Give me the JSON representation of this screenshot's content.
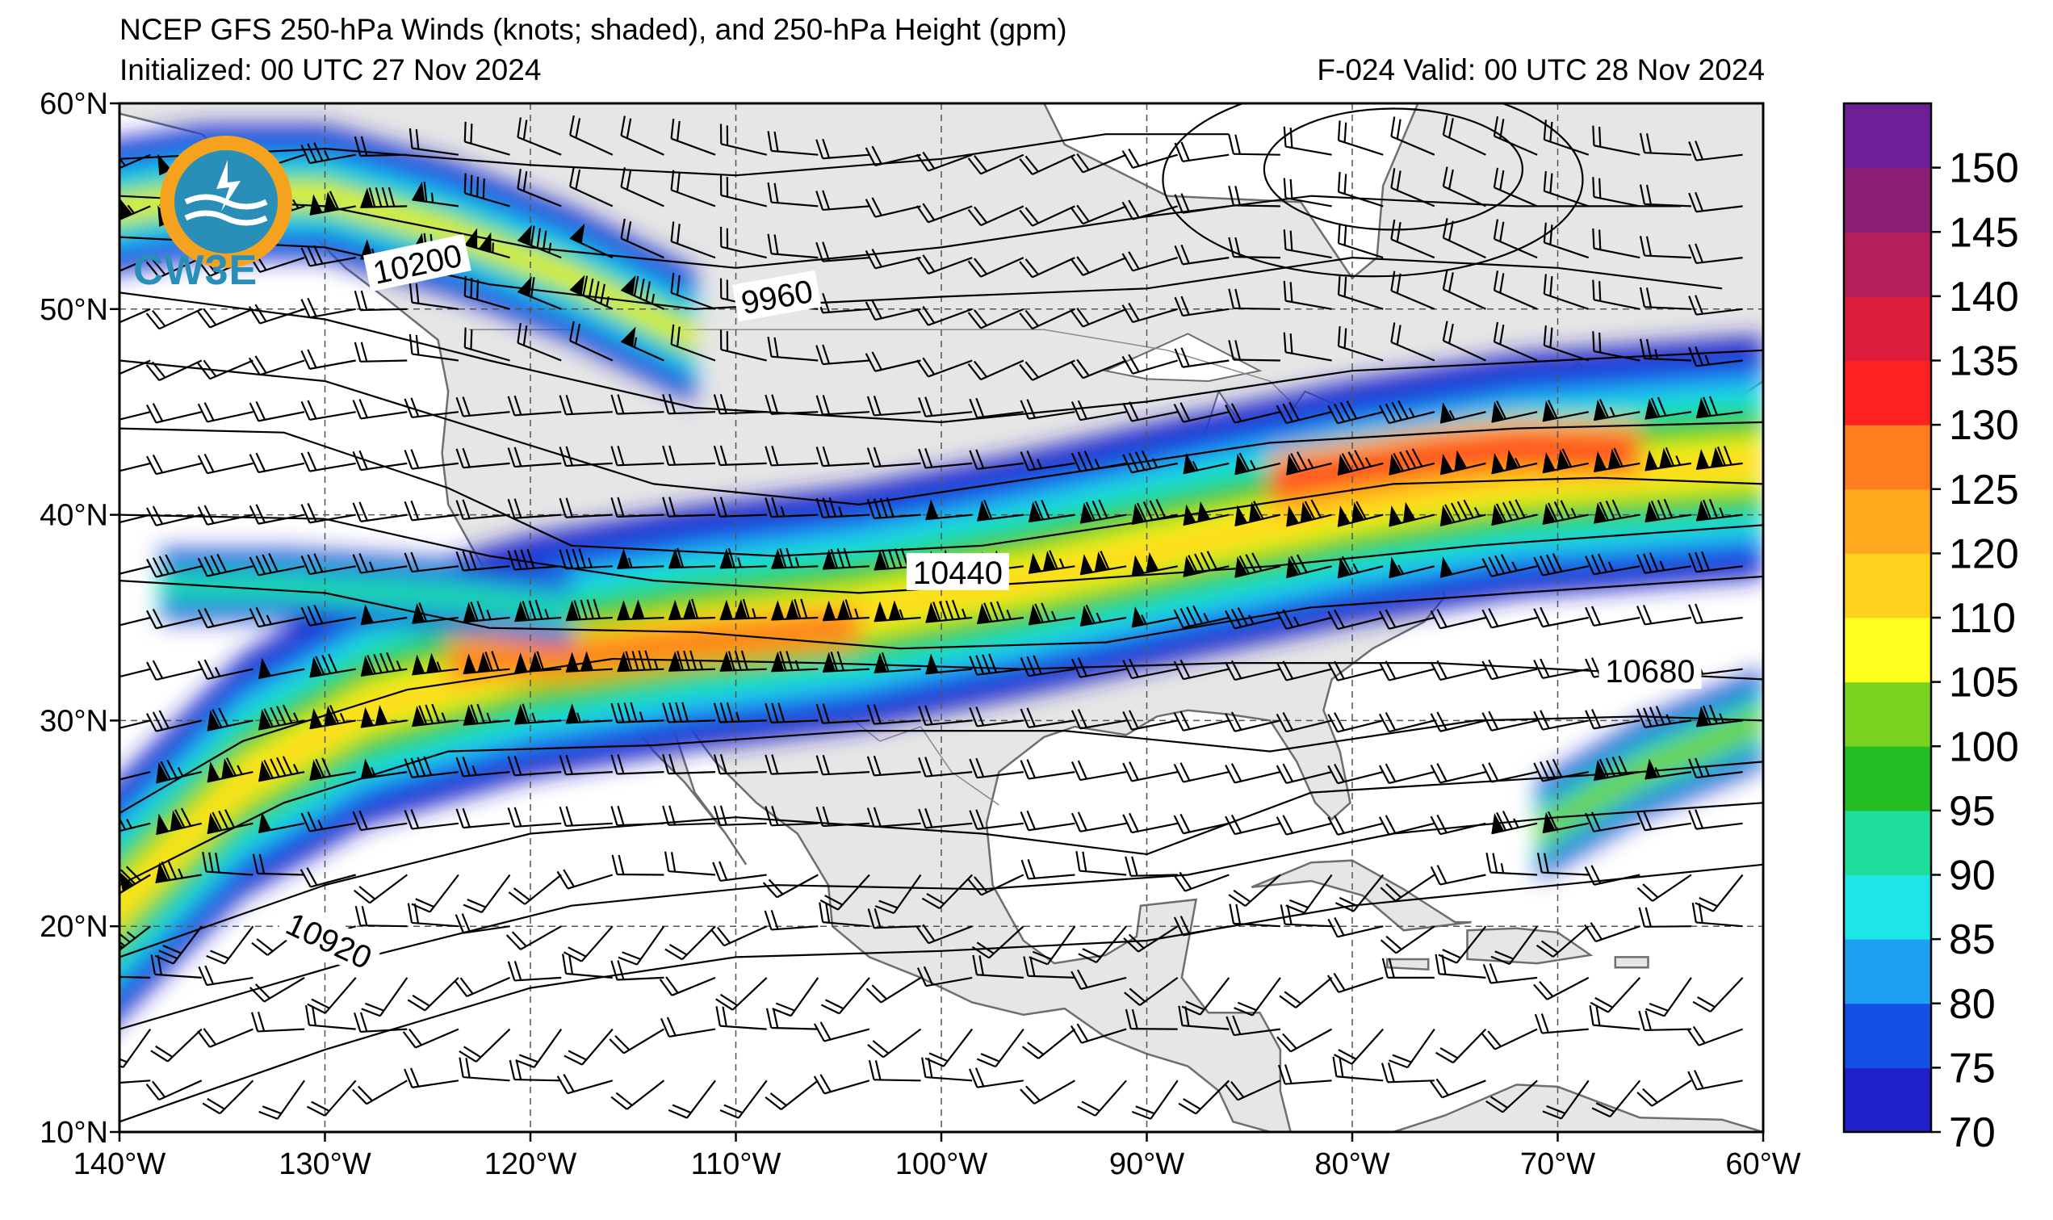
{
  "title": {
    "line1": "NCEP GFS 250-hPa Winds (knots; shaded), and 250-hPa Height (gpm)",
    "line2": "Initialized: 00 UTC 27 Nov 2024",
    "line3": "F-024  Valid: 00 UTC 28 Nov 2024"
  },
  "logo": {
    "text": "CW3E",
    "icon": "cw3e-globe-logo-icon"
  },
  "map": {
    "lon_range": [
      -140,
      -60
    ],
    "lat_range": [
      10,
      60
    ],
    "lon_ticks": [
      {
        "value": -140,
        "label": "140°W"
      },
      {
        "value": -130,
        "label": "130°W"
      },
      {
        "value": -120,
        "label": "120°W"
      },
      {
        "value": -110,
        "label": "110°W"
      },
      {
        "value": -100,
        "label": "100°W"
      },
      {
        "value": -90,
        "label": "90°W"
      },
      {
        "value": -80,
        "label": "80°W"
      },
      {
        "value": -70,
        "label": "70°W"
      },
      {
        "value": -60,
        "label": "60°W"
      }
    ],
    "lat_ticks": [
      {
        "value": 60,
        "label": "60°N"
      },
      {
        "value": 50,
        "label": "50°N"
      },
      {
        "value": 40,
        "label": "40°N"
      },
      {
        "value": 30,
        "label": "30°N"
      },
      {
        "value": 20,
        "label": "20°N"
      },
      {
        "value": 10,
        "label": "10°N"
      }
    ],
    "grid": true,
    "land_color": "#e6e6e6",
    "ocean_color": "#ffffff",
    "coast_color": "#6e6e6e"
  },
  "contour_labels": [
    {
      "text": "10200",
      "lon": -125.5,
      "lat": 52.2,
      "rotate": 12
    },
    {
      "text": "9960",
      "lon": -108.0,
      "lat": 50.6,
      "rotate": 10
    },
    {
      "text": "10440",
      "lon": -99.2,
      "lat": 37.2,
      "rotate": 0
    },
    {
      "text": "10680",
      "lon": -65.5,
      "lat": 32.4,
      "rotate": 0
    },
    {
      "text": "10920",
      "lon": -129.8,
      "lat": 19.3,
      "rotate": -25
    }
  ],
  "colorbar": {
    "levels": [
      70,
      75,
      80,
      85,
      90,
      95,
      100,
      105,
      110,
      120,
      125,
      130,
      135,
      140,
      145,
      150,
      155
    ],
    "labels": [
      "70",
      "75",
      "80",
      "85",
      "90",
      "95",
      "100",
      "105",
      "110",
      "120",
      "125",
      "130",
      "135",
      "140",
      "145",
      "150"
    ],
    "colors": [
      "#2020c8",
      "#1450e6",
      "#1ea0f0",
      "#1ee6e6",
      "#1edc9b",
      "#23be23",
      "#78d21e",
      "#ffff1e",
      "#ffd21e",
      "#ffaa1e",
      "#ff7d1e",
      "#ff2020",
      "#dc1e3c",
      "#b41e5a",
      "#8c1e78",
      "#6e1e96"
    ]
  }
}
